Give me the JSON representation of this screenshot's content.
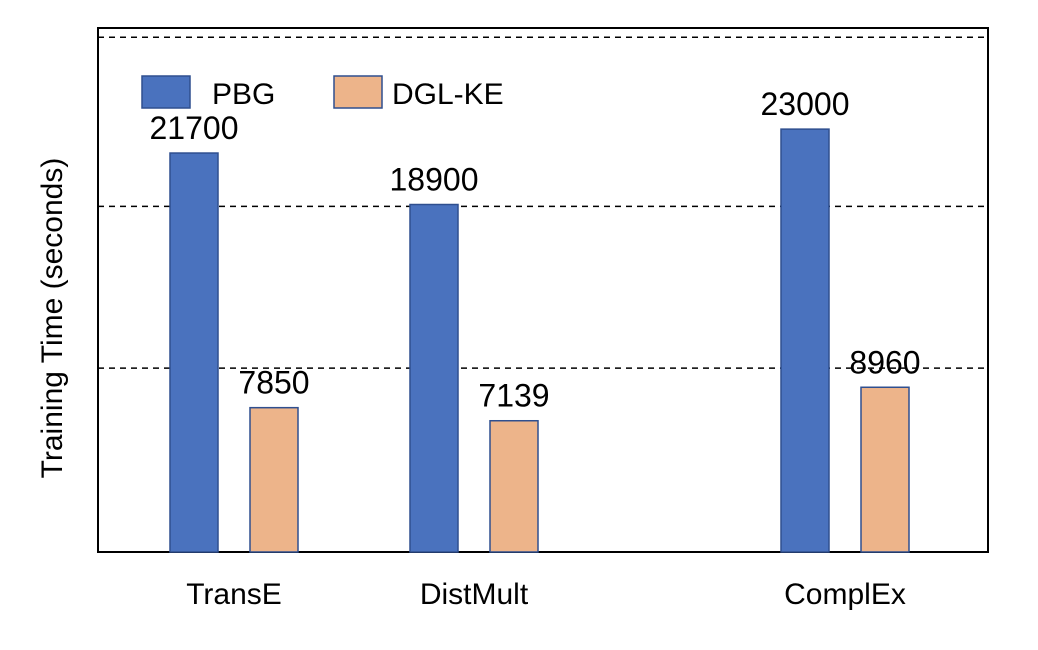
{
  "chart_data": {
    "type": "bar",
    "title": "",
    "xlabel": "",
    "ylabel": "Training  Time (seconds)",
    "categories": [
      "TransE",
      "DistMult",
      "ComplEx"
    ],
    "series": [
      {
        "name": "PBG",
        "values": [
          21700,
          18900,
          23000
        ],
        "labels": [
          "21700",
          "18900",
          "23000"
        ],
        "color": "#4A72BE"
      },
      {
        "name": "DGL-KE",
        "values": [
          7850,
          7139,
          8960
        ],
        "labels": [
          "7850",
          "7139",
          "8960"
        ],
        "color": "#EDB48A"
      }
    ],
    "ylim": [
      0,
      28500
    ],
    "gridlines_y": [
      10000,
      18800,
      28000
    ],
    "grid": "dashed-horizontal",
    "legend_position": "top-left",
    "bar_edge_color": "#2F4F8F"
  }
}
